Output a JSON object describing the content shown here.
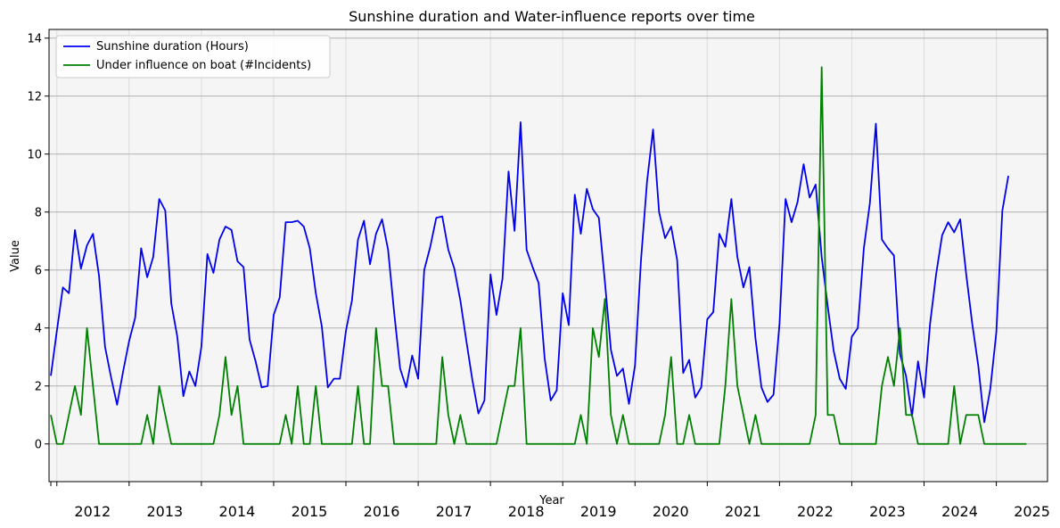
{
  "chart_data": {
    "type": "line",
    "title": "Sunshine duration and Water-influence reports over time",
    "xlabel": "Year",
    "ylabel": "Value",
    "ylim": [
      -1.3,
      14.3
    ],
    "yticks": [
      0,
      2,
      4,
      6,
      8,
      10,
      12,
      14
    ],
    "x_year_labels": [
      "2012",
      "2013",
      "2014",
      "2015",
      "2016",
      "2017",
      "2018",
      "2019",
      "2020",
      "2021",
      "2022",
      "2023",
      "2024",
      "2025"
    ],
    "x_start": "2011-12",
    "x_range_months": [
      -0.3,
      165.5
    ],
    "grid": {
      "horizontal": true,
      "vertical_light": true
    },
    "legend_position": "top-left",
    "background": "#f5f5f5",
    "series": [
      {
        "name": "Sunshine duration (Hours)",
        "color": "#0000ee",
        "values": [
          2.35,
          3.9,
          5.4,
          5.2,
          7.38,
          6.05,
          6.85,
          7.25,
          5.8,
          3.35,
          2.3,
          1.35,
          2.5,
          3.55,
          4.35,
          6.75,
          5.75,
          6.45,
          8.45,
          8.05,
          4.85,
          3.7,
          1.65,
          2.5,
          2.0,
          3.35,
          6.55,
          5.9,
          7.05,
          7.5,
          7.38,
          6.3,
          6.1,
          3.6,
          2.85,
          1.95,
          2.0,
          4.45,
          5.05,
          7.65,
          7.65,
          7.7,
          7.5,
          6.75,
          5.2,
          4.05,
          1.95,
          2.25,
          2.25,
          3.9,
          4.95,
          7.05,
          7.7,
          6.2,
          7.25,
          7.75,
          6.7,
          4.55,
          2.6,
          1.95,
          3.05,
          2.25,
          6.0,
          6.8,
          7.8,
          7.85,
          6.7,
          6.05,
          4.95,
          3.55,
          2.2,
          1.05,
          1.5,
          5.85,
          4.45,
          5.7,
          9.4,
          7.35,
          11.1,
          6.7,
          6.1,
          5.55,
          2.95,
          1.5,
          1.85,
          5.2,
          4.1,
          8.6,
          7.25,
          8.8,
          8.1,
          7.8,
          5.6,
          3.25,
          2.35,
          2.6,
          1.38,
          2.7,
          6.35,
          9.05,
          10.85,
          8.0,
          7.1,
          7.5,
          6.35,
          2.45,
          2.9,
          1.6,
          1.95,
          4.3,
          4.55,
          7.25,
          6.8,
          8.45,
          6.45,
          5.4,
          6.1,
          3.65,
          1.95,
          1.45,
          1.7,
          4.15,
          8.45,
          7.65,
          8.35,
          9.65,
          8.5,
          8.95,
          6.45,
          4.75,
          3.2,
          2.25,
          1.9,
          3.7,
          4.0,
          6.75,
          8.3,
          11.05,
          7.05,
          6.75,
          6.5,
          3.1,
          2.35,
          0.95,
          2.85,
          1.6,
          4.15,
          5.85,
          7.2,
          7.65,
          7.3,
          7.75,
          5.85,
          4.15,
          2.7,
          0.75,
          1.9,
          3.85,
          8.05,
          9.25
        ]
      },
      {
        "name": "Under influence on boat (#Incidents)",
        "color": "#008000",
        "values": [
          1,
          0,
          0,
          1,
          2,
          1,
          4,
          2,
          0,
          0,
          0,
          0,
          0,
          0,
          0,
          0,
          1,
          0,
          2,
          1,
          0,
          0,
          0,
          0,
          0,
          0,
          0,
          0,
          1,
          3,
          1,
          2,
          0,
          0,
          0,
          0,
          0,
          0,
          0,
          1,
          0,
          2,
          0,
          0,
          2,
          0,
          0,
          0,
          0,
          0,
          0,
          2,
          0,
          0,
          4,
          2,
          2,
          0,
          0,
          0,
          0,
          0,
          0,
          0,
          0,
          3,
          1,
          0,
          1,
          0,
          0,
          0,
          0,
          0,
          0,
          1,
          2,
          2,
          4,
          0,
          0,
          0,
          0,
          0,
          0,
          0,
          0,
          0,
          1,
          0,
          4,
          3,
          5,
          1,
          0,
          1,
          0,
          0,
          0,
          0,
          0,
          0,
          1,
          3,
          0,
          0,
          1,
          0,
          0,
          0,
          0,
          0,
          2,
          5,
          2,
          1,
          0,
          1,
          0,
          0,
          0,
          0,
          0,
          0,
          0,
          0,
          0,
          1,
          13,
          1,
          1,
          0,
          0,
          0,
          0,
          0,
          0,
          0,
          2,
          3,
          2,
          4,
          1,
          1,
          0,
          0,
          0,
          0,
          0,
          0,
          2,
          0,
          1,
          1,
          1,
          0,
          0,
          0,
          0,
          0,
          0,
          0,
          0
        ]
      }
    ]
  }
}
